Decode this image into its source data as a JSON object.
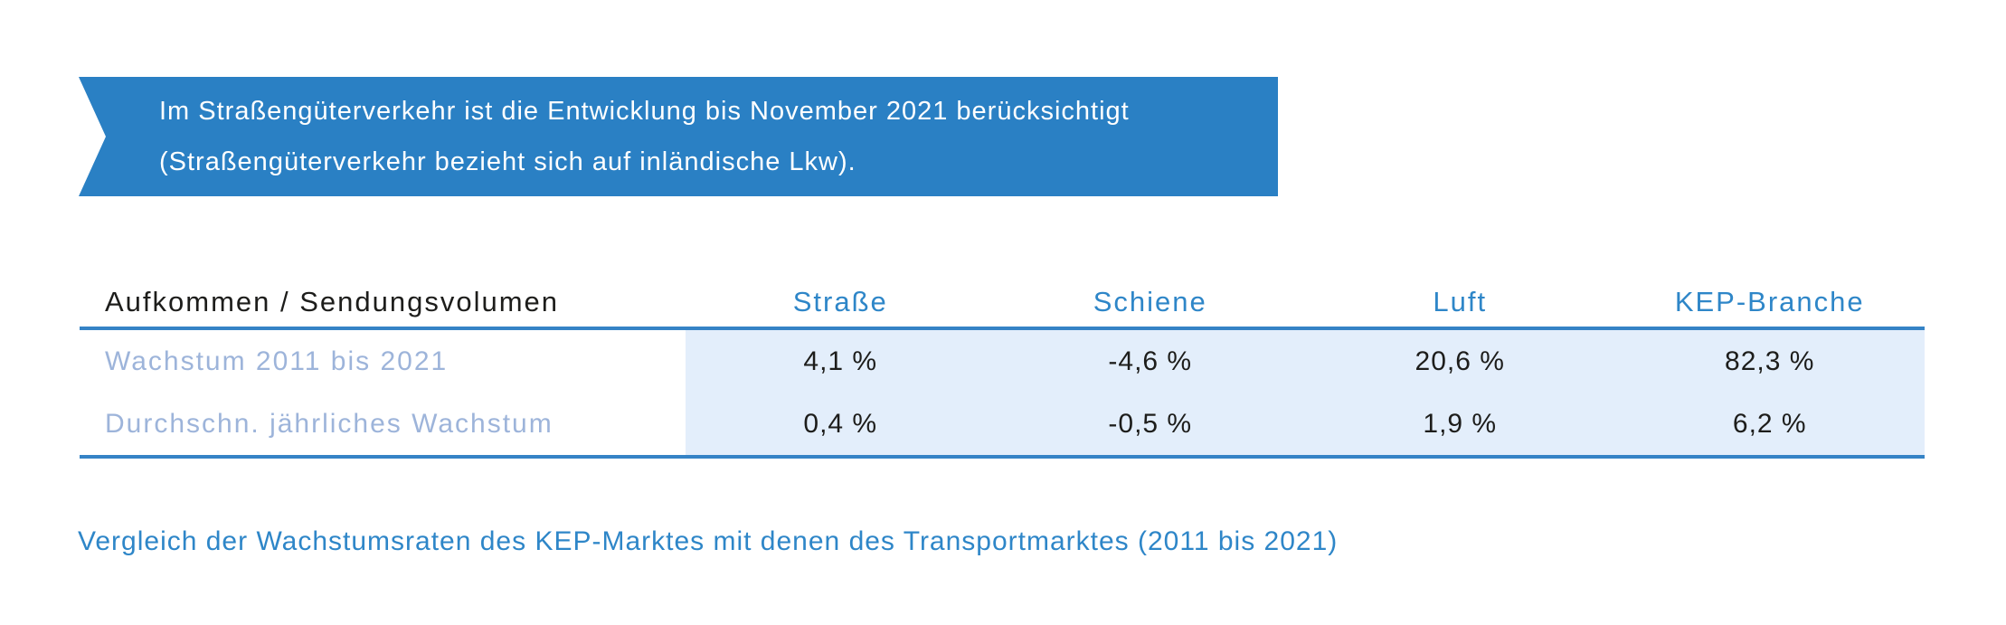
{
  "banner": {
    "line1": "Im Straßengüterverkehr ist die Entwicklung bis November 2021 berücksichtigt",
    "line2": "(Straßengüterverkehr bezieht sich auf inländische Lkw)."
  },
  "table": {
    "row_header_label": "Aufkommen / Sendungsvolumen",
    "columns": [
      "Straße",
      "Schiene",
      "Luft",
      "KEP-Branche"
    ],
    "rows": [
      {
        "label": "Wachstum 2011 bis 2021",
        "values": [
          "4,1 %",
          "-4,6 %",
          "20,6 %",
          "82,3 %"
        ]
      },
      {
        "label": "Durchschn. jährliches Wachstum",
        "values": [
          "0,4 %",
          "-0,5 %",
          "1,9 %",
          "6,2 %"
        ]
      }
    ]
  },
  "caption": "Vergleich der Wachstumsraten des KEP-Marktes mit denen des Transportmarktes (2011 bis 2021)",
  "colors": {
    "banner_bg": "#2a80c4",
    "accent_blue": "#2e86c8",
    "rule_blue": "#3583c6",
    "row_shade": "#e3eefb",
    "row_label_text": "#9db4da",
    "text_dark": "#1d1d1b"
  }
}
